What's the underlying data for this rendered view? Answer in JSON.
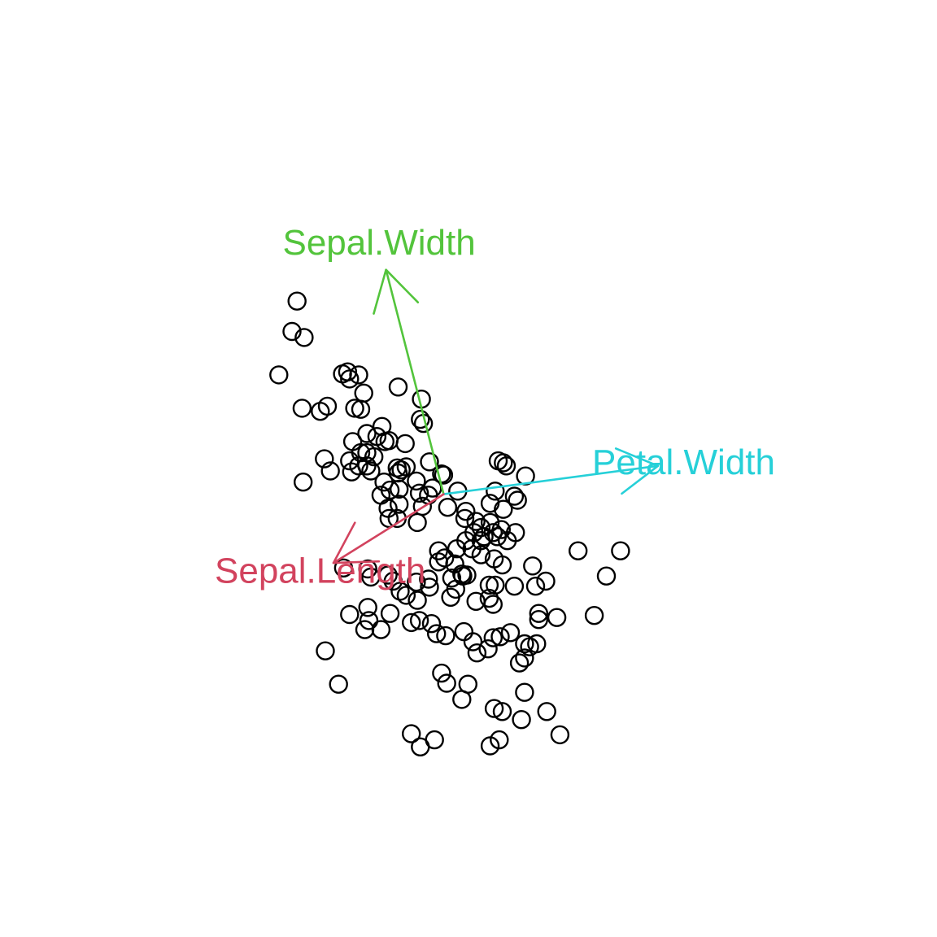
{
  "chart_data": {
    "type": "scatter",
    "title": "",
    "xlabel": "",
    "ylabel": "",
    "axes_visible": false,
    "grid": false,
    "xlim": [
      -3.6,
      4.1
    ],
    "ylim": [
      -3.6,
      4.1
    ],
    "marker": "open-circle",
    "points": [
      [
        -1.45,
        1.91
      ],
      [
        -1.5,
        1.61
      ],
      [
        -1.38,
        1.55
      ],
      [
        -1.63,
        1.18
      ],
      [
        -1.0,
        1.19
      ],
      [
        -0.95,
        1.21
      ],
      [
        -0.84,
        1.18
      ],
      [
        -0.93,
        1.14
      ],
      [
        -0.79,
        1.0
      ],
      [
        -0.45,
        1.06
      ],
      [
        -1.4,
        0.85
      ],
      [
        -1.15,
        0.87
      ],
      [
        -1.22,
        0.82
      ],
      [
        -0.88,
        0.85
      ],
      [
        -0.82,
        0.84
      ],
      [
        -0.22,
        0.94
      ],
      [
        -0.23,
        0.74
      ],
      [
        -0.2,
        0.7
      ],
      [
        -0.61,
        0.67
      ],
      [
        -0.76,
        0.6
      ],
      [
        -0.66,
        0.57
      ],
      [
        -0.9,
        0.52
      ],
      [
        -0.58,
        0.52
      ],
      [
        -0.54,
        0.53
      ],
      [
        -0.38,
        0.5
      ],
      [
        -0.82,
        0.41
      ],
      [
        -0.76,
        0.41
      ],
      [
        -0.69,
        0.37
      ],
      [
        -1.18,
        0.35
      ],
      [
        -0.93,
        0.33
      ],
      [
        -0.84,
        0.28
      ],
      [
        -0.76,
        0.28
      ],
      [
        -1.12,
        0.23
      ],
      [
        -0.91,
        0.22
      ],
      [
        -0.72,
        0.23
      ],
      [
        -0.45,
        0.21
      ],
      [
        -0.42,
        0.24
      ],
      [
        -0.46,
        0.26
      ],
      [
        -0.37,
        0.27
      ],
      [
        -0.14,
        0.32
      ],
      [
        -0.02,
        0.2
      ],
      [
        0.0,
        0.19
      ],
      [
        -1.39,
        0.12
      ],
      [
        -0.59,
        0.12
      ],
      [
        -0.27,
        0.13
      ],
      [
        -0.11,
        0.06
      ],
      [
        -0.53,
        0.04
      ],
      [
        -0.44,
        0.05
      ],
      [
        -0.24,
        0.01
      ],
      [
        -0.62,
        -0.01
      ],
      [
        -0.15,
        -0.01
      ],
      [
        0.14,
        0.03
      ],
      [
        0.54,
        0.33
      ],
      [
        0.59,
        0.31
      ],
      [
        0.62,
        0.28
      ],
      [
        0.81,
        0.18
      ],
      [
        0.51,
        0.03
      ],
      [
        0.7,
        -0.02
      ],
      [
        0.73,
        -0.06
      ],
      [
        -0.44,
        -0.1
      ],
      [
        -0.55,
        -0.14
      ],
      [
        -0.21,
        -0.12
      ],
      [
        0.04,
        -0.13
      ],
      [
        0.22,
        -0.17
      ],
      [
        0.46,
        -0.09
      ],
      [
        0.59,
        -0.15
      ],
      [
        -0.54,
        -0.24
      ],
      [
        -0.46,
        -0.24
      ],
      [
        -0.26,
        -0.28
      ],
      [
        0.21,
        -0.24
      ],
      [
        0.32,
        -0.27
      ],
      [
        0.37,
        -0.33
      ],
      [
        0.46,
        -0.28
      ],
      [
        0.3,
        -0.38
      ],
      [
        0.4,
        -0.42
      ],
      [
        0.49,
        -0.38
      ],
      [
        0.57,
        -0.35
      ],
      [
        0.22,
        -0.46
      ],
      [
        0.37,
        -0.46
      ],
      [
        0.53,
        -0.42
      ],
      [
        0.63,
        -0.46
      ],
      [
        0.71,
        -0.38
      ],
      [
        0.13,
        -0.54
      ],
      [
        0.28,
        -0.54
      ],
      [
        -0.05,
        -0.56
      ],
      [
        0.01,
        -0.63
      ],
      [
        -0.05,
        -0.67
      ],
      [
        0.37,
        -0.6
      ],
      [
        0.5,
        -0.64
      ],
      [
        0.58,
        -0.7
      ],
      [
        0.88,
        -0.71
      ],
      [
        1.33,
        -0.56
      ],
      [
        1.75,
        -0.56
      ],
      [
        -0.99,
        -0.73
      ],
      [
        -0.75,
        -0.74
      ],
      [
        -0.72,
        -0.82
      ],
      [
        -0.55,
        -0.8
      ],
      [
        -0.5,
        -0.86
      ],
      [
        -0.27,
        -0.87
      ],
      [
        -0.15,
        -0.84
      ],
      [
        0.08,
        -0.83
      ],
      [
        0.11,
        -0.69
      ],
      [
        -0.14,
        -0.92
      ],
      [
        0.12,
        -0.94
      ],
      [
        0.18,
        -0.79
      ],
      [
        0.23,
        -0.8
      ],
      [
        0.19,
        -0.81
      ],
      [
        0.45,
        -0.9
      ],
      [
        0.51,
        -0.9
      ],
      [
        0.7,
        -0.91
      ],
      [
        0.91,
        -0.91
      ],
      [
        1.01,
        -0.86
      ],
      [
        1.61,
        -0.81
      ],
      [
        -0.43,
        -0.96
      ],
      [
        -0.37,
        -1.0
      ],
      [
        -0.26,
        -1.05
      ],
      [
        0.07,
        -1.02
      ],
      [
        0.32,
        -1.06
      ],
      [
        0.45,
        -1.03
      ],
      [
        0.49,
        -1.09
      ],
      [
        -0.53,
        -1.18
      ],
      [
        -0.75,
        -1.12
      ],
      [
        -0.74,
        -1.25
      ],
      [
        -0.78,
        -1.34
      ],
      [
        -0.62,
        -1.34
      ],
      [
        -0.93,
        -1.19
      ],
      [
        0.94,
        -1.18
      ],
      [
        0.94,
        -1.24
      ],
      [
        -0.32,
        -1.27
      ],
      [
        -0.24,
        -1.25
      ],
      [
        -0.12,
        -1.28
      ],
      [
        -0.07,
        -1.38
      ],
      [
        0.02,
        -1.4
      ],
      [
        0.2,
        -1.36
      ],
      [
        0.29,
        -1.46
      ],
      [
        0.44,
        -1.53
      ],
      [
        0.33,
        -1.57
      ],
      [
        0.49,
        -1.42
      ],
      [
        0.56,
        -1.41
      ],
      [
        0.66,
        -1.37
      ],
      [
        0.8,
        -1.48
      ],
      [
        0.85,
        -1.51
      ],
      [
        0.92,
        -1.48
      ],
      [
        1.12,
        -1.22
      ],
      [
        0.8,
        -1.62
      ],
      [
        0.75,
        -1.67
      ],
      [
        -0.02,
        -1.77
      ],
      [
        -1.17,
        -1.55
      ],
      [
        -1.04,
        -1.88
      ],
      [
        0.03,
        -1.87
      ],
      [
        0.24,
        -1.88
      ],
      [
        0.8,
        -1.96
      ],
      [
        1.49,
        -1.2
      ],
      [
        0.18,
        -2.03
      ],
      [
        0.5,
        -2.12
      ],
      [
        0.58,
        -2.15
      ],
      [
        0.77,
        -2.23
      ],
      [
        1.02,
        -2.15
      ],
      [
        -0.32,
        -2.37
      ],
      [
        -0.09,
        -2.43
      ],
      [
        -0.23,
        -2.5
      ],
      [
        0.46,
        -2.49
      ],
      [
        0.55,
        -2.43
      ],
      [
        1.15,
        -2.38
      ]
    ],
    "vectors": [
      {
        "name": "Sepal.Width",
        "x": -0.57,
        "y": 2.22,
        "color": "#53c43c"
      },
      {
        "name": "Petal.Width",
        "x": 2.12,
        "y": 0.28,
        "color": "#26d0d8"
      },
      {
        "name": "Sepal.Length",
        "x": -1.09,
        "y": -0.68,
        "color": "#d2435e"
      }
    ]
  }
}
